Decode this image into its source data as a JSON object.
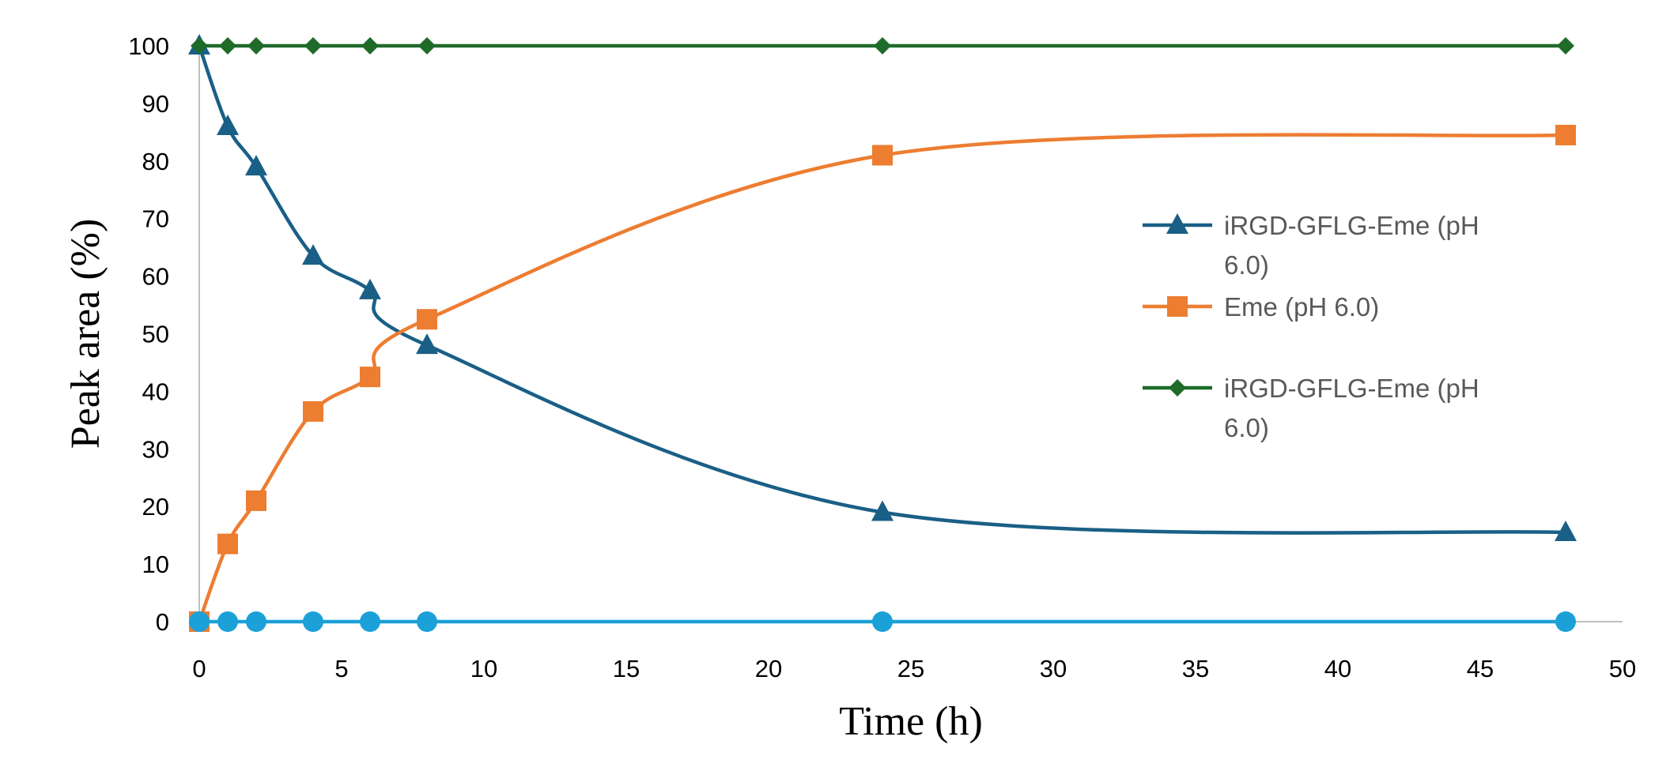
{
  "chart_data": {
    "type": "line",
    "title": "",
    "xlabel": "Time (h)",
    "ylabel": "Peak area (%)",
    "xlim": [
      0,
      50
    ],
    "ylim": [
      0,
      100
    ],
    "xticks": [
      0,
      5,
      10,
      15,
      20,
      25,
      30,
      35,
      40,
      45,
      50
    ],
    "yticks": [
      0,
      10,
      20,
      30,
      40,
      50,
      60,
      70,
      80,
      90,
      100
    ],
    "grid": false,
    "legend_position": "right",
    "series": [
      {
        "name": "iRGD-GFLG-Eme (pH 6.0)",
        "legend_lines": [
          "iRGD-GFLG-Eme (pH",
          "6.0)"
        ],
        "color": "#1a5f86",
        "marker": "triangle",
        "x": [
          0,
          1,
          2,
          4,
          6,
          8,
          24,
          48
        ],
        "y": [
          100,
          86,
          79,
          63.5,
          57.5,
          48,
          19,
          15.5
        ]
      },
      {
        "name": "Eme (pH 6.0)",
        "legend_lines": [
          "Eme (pH 6.0)"
        ],
        "color": "#ed7d31",
        "marker": "square",
        "x": [
          0,
          1,
          2,
          4,
          6,
          8,
          24,
          48
        ],
        "y": [
          0,
          13.5,
          21,
          36.5,
          42.5,
          52.5,
          81,
          84.5
        ]
      },
      {
        "name": "iRGD-GFLG-Eme (pH 6.0)",
        "legend_lines": [
          "iRGD-GFLG-Eme (pH",
          "6.0)"
        ],
        "color": "#1f6b2a",
        "marker": "diamond",
        "x": [
          0,
          1,
          2,
          4,
          6,
          8,
          24,
          48
        ],
        "y": [
          100,
          100,
          100,
          100,
          100,
          100,
          100,
          100
        ]
      },
      {
        "color": "#1ba1d8",
        "marker": "circle",
        "in_legend": false,
        "x": [
          0,
          1,
          2,
          4,
          6,
          8,
          24,
          48
        ],
        "y": [
          0,
          0,
          0,
          0,
          0,
          0,
          0,
          0
        ]
      }
    ]
  }
}
